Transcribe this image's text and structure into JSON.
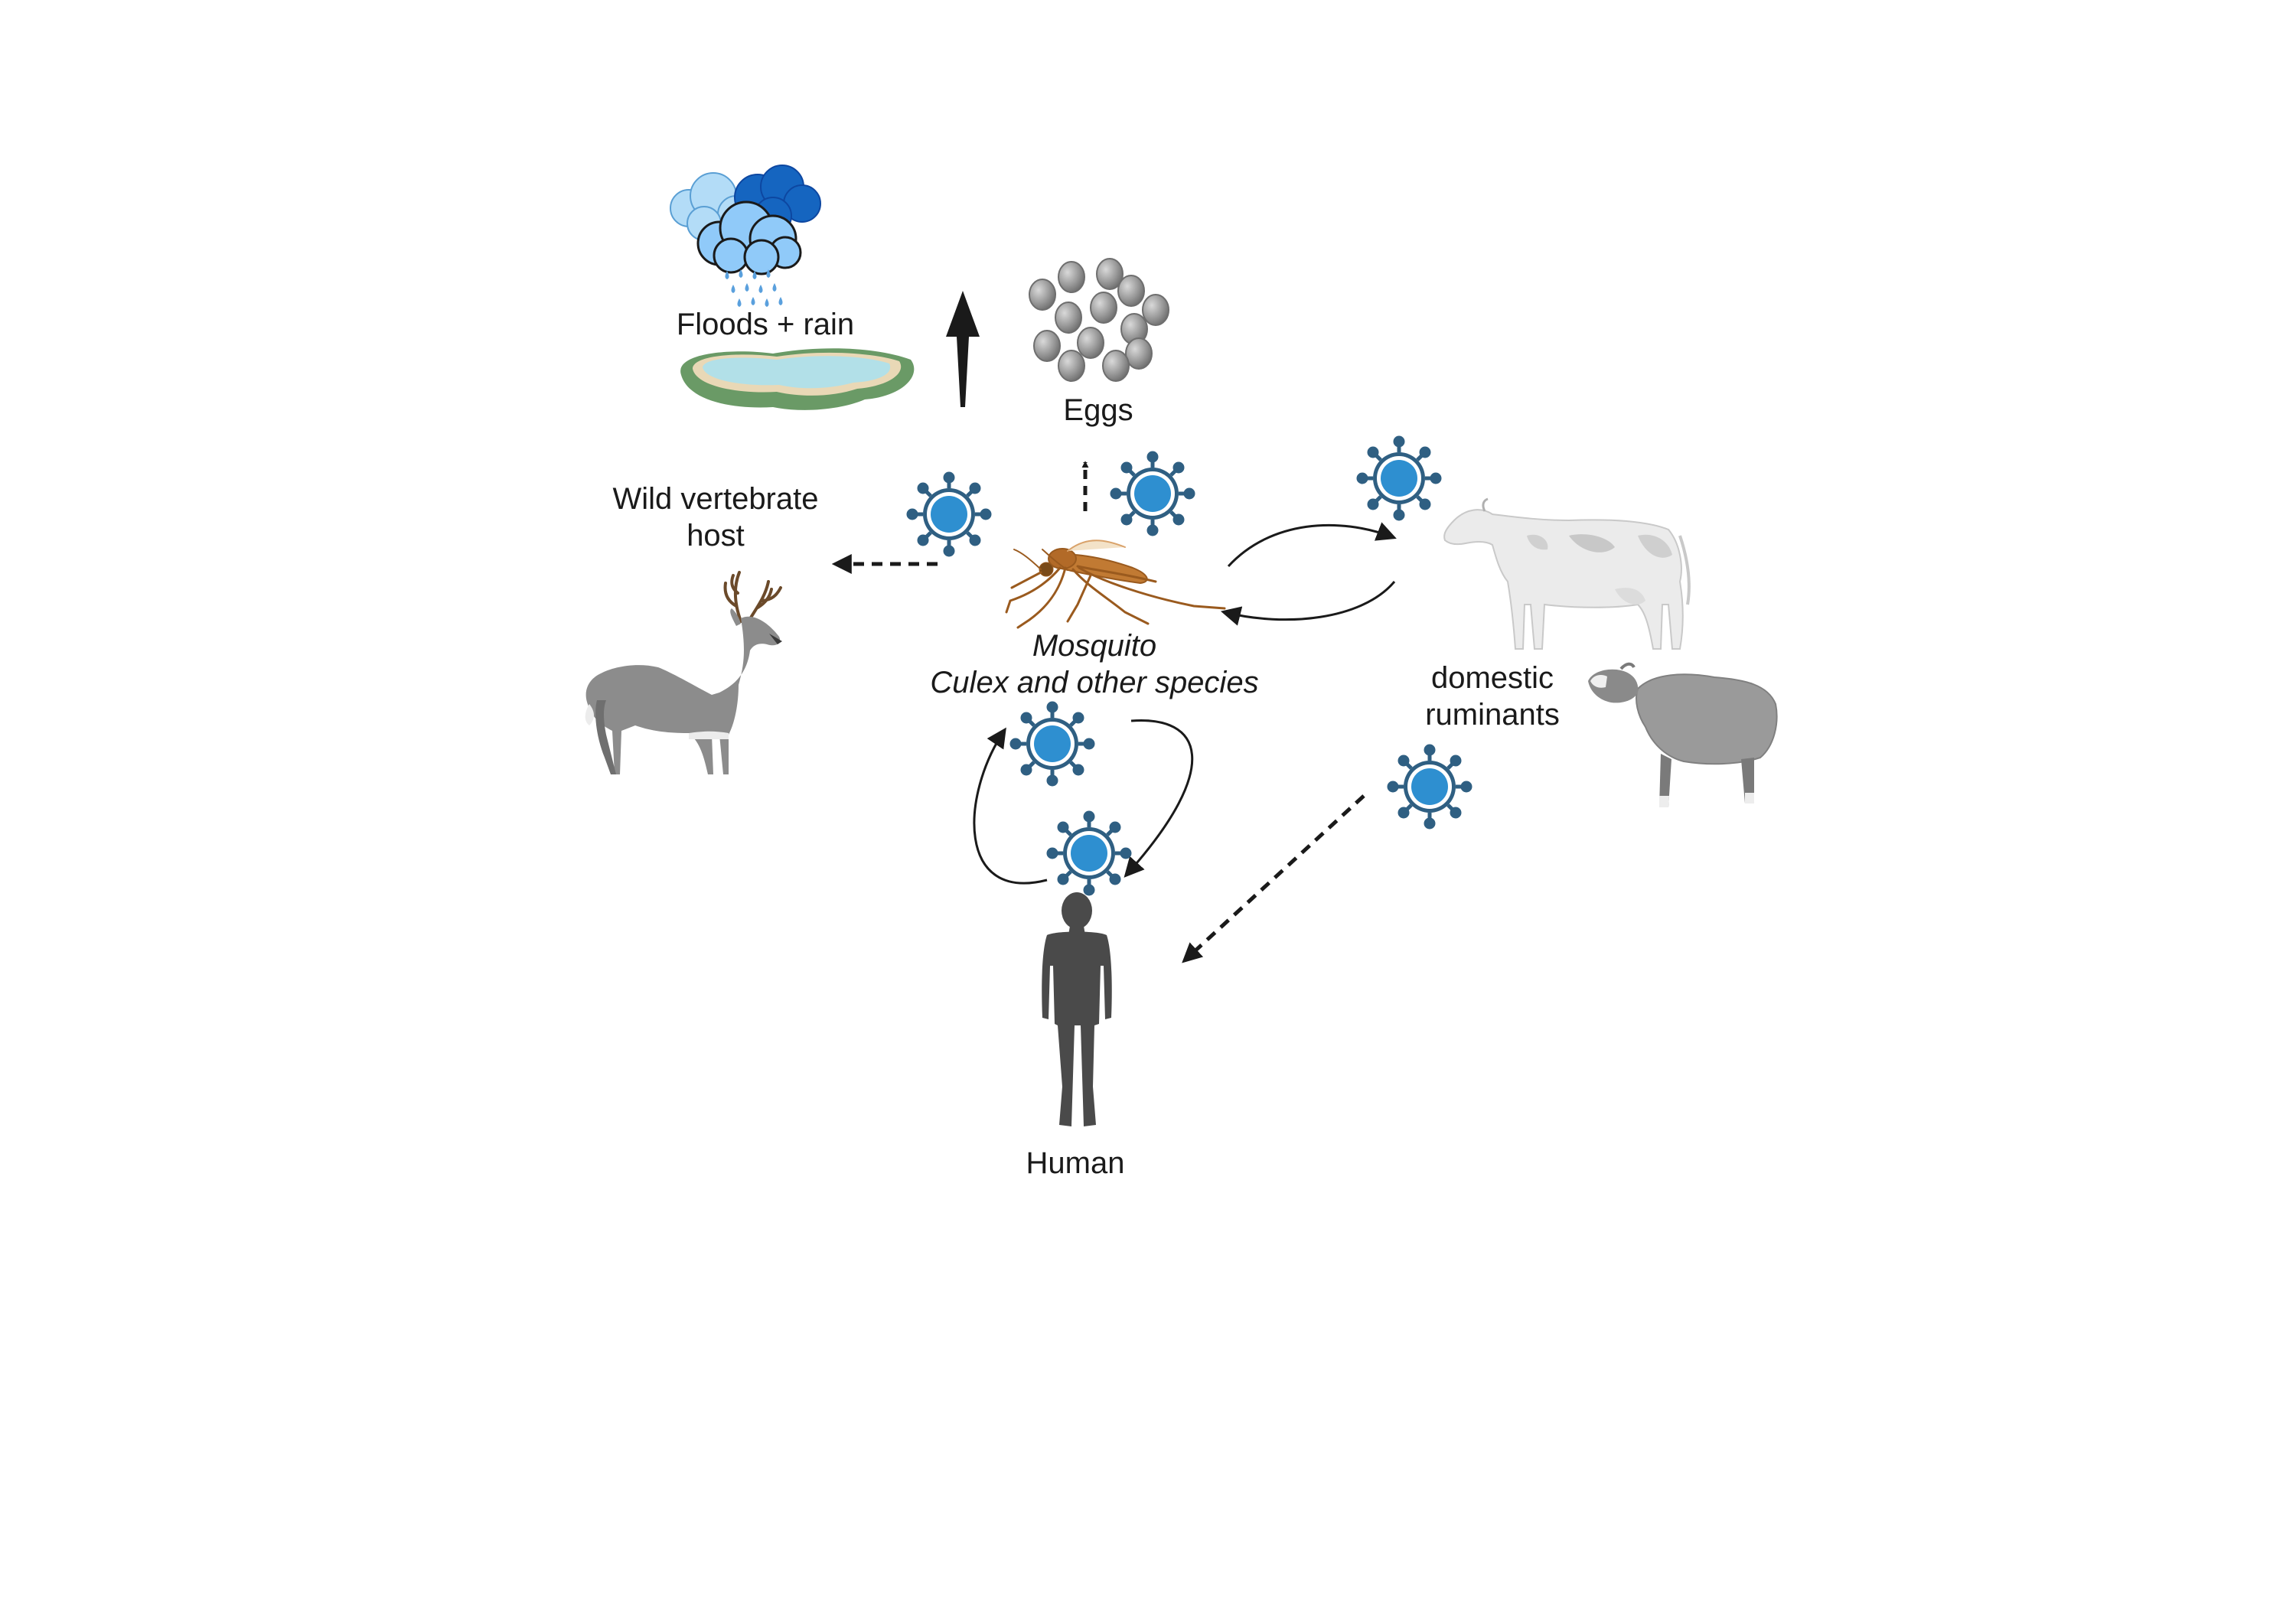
{
  "labels": {
    "floods": "Floods + rain",
    "eggs": "Eggs",
    "wild_line1": "Wild vertebrate",
    "wild_line2": "host",
    "mosquito_line1": "Mosquito",
    "mosquito_line2": "Culex and other species",
    "ruminants_line1": "domestic",
    "ruminants_line2": "ruminants",
    "human": "Human"
  },
  "icons": [
    "rain-cloud-icon",
    "pond-icon",
    "eggs-icon",
    "virus-icon",
    "mosquito-icon",
    "deer-icon",
    "cow-icon",
    "sheep-icon",
    "human-icon"
  ],
  "colors": {
    "virus_ring": "#2f5f82",
    "virus_core": "#2e8fd0",
    "arrow": "#1a1a1a",
    "cloud_dark": "#1565c0",
    "cloud_light": "#90caf9",
    "water": "#b2e0e8",
    "grass": "#6a9a66"
  }
}
